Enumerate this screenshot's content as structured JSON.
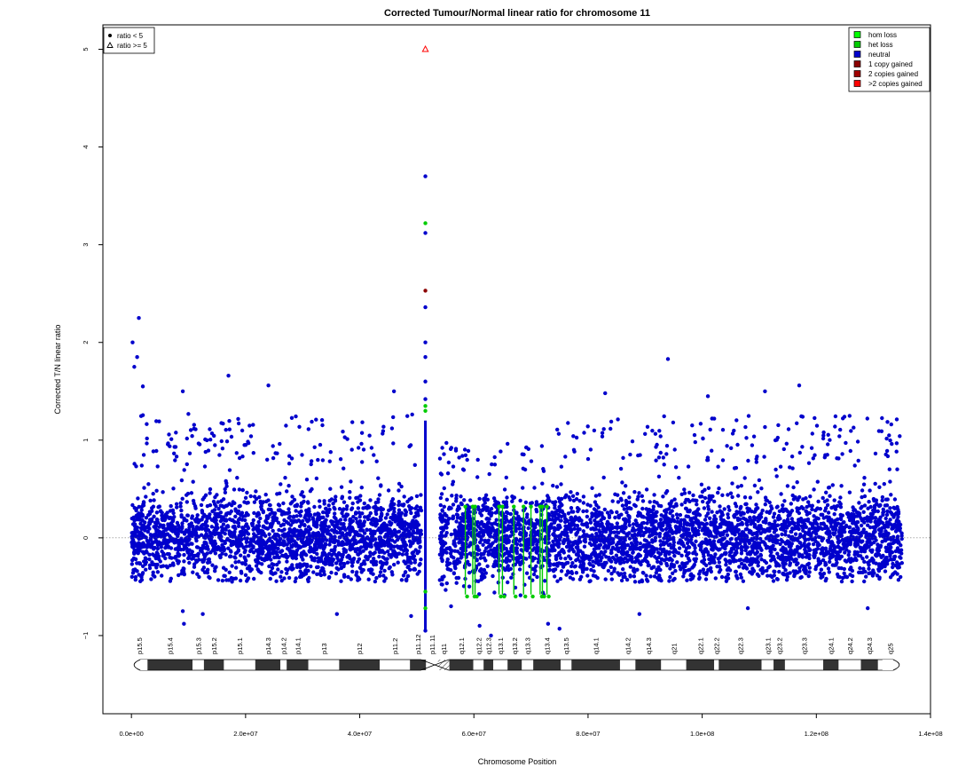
{
  "chart_data": {
    "type": "scatter",
    "title": "Corrected Tumour/Normal linear ratio for chromosome  11",
    "xlabel": "Chromosome Position",
    "ylabel": "Corrected T/N linear ratio",
    "xlim": [
      -5000000,
      140000000
    ],
    "ylim": [
      -1.8,
      5.25
    ],
    "x_ticks": [
      0,
      20000000,
      40000000,
      60000000,
      80000000,
      100000000,
      120000000,
      140000000
    ],
    "x_tick_labels": [
      "0.0e+00",
      "2.0e+07",
      "4.0e+07",
      "6.0e+07",
      "8.0e+07",
      "1.0e+08",
      "1.2e+08",
      "1.4e+08"
    ],
    "y_ticks": [
      -1,
      0,
      1,
      2,
      3,
      4,
      5
    ],
    "y_tick_labels": [
      "−1",
      "0",
      "1",
      "2",
      "3",
      "4",
      "5"
    ],
    "reference_line_y": 0,
    "colors": {
      "hom_loss": "#00ff00",
      "het_loss": "#00cc00",
      "neutral": "#0000cc",
      "one_copy_gained": "#8b0000",
      "two_copies_gained": "#a00000",
      "more_copies_gained": "#ff0000"
    },
    "legend_shape": {
      "position": "top-left",
      "entries": [
        {
          "label": "ratio < 5",
          "symbol": "dot"
        },
        {
          "label": "ratio >= 5",
          "symbol": "triangle"
        }
      ]
    },
    "legend_status": {
      "position": "top-right",
      "entries": [
        {
          "label": "hom loss",
          "color": "#00ff00"
        },
        {
          "label": "het loss",
          "color": "#00cc00"
        },
        {
          "label": "neutral",
          "color": "#0000cc"
        },
        {
          "label": "1 copy gained",
          "color": "#8b0000"
        },
        {
          "label": "2 copies gained",
          "color": "#a00000"
        },
        {
          "label": ">2 copies gained",
          "color": "#ff0000"
        }
      ]
    },
    "dense_regions": [
      {
        "status": "neutral",
        "x_range": [
          0,
          50800000
        ],
        "y_range": [
          -0.45,
          0.72
        ]
      },
      {
        "status": "neutral",
        "x_range": [
          54000000,
          73500000
        ],
        "y_range": [
          -0.6,
          0.45
        ]
      },
      {
        "status": "neutral",
        "x_range": [
          73500000,
          135000000
        ],
        "y_range": [
          -0.45,
          0.7
        ]
      }
    ],
    "het_loss_segments_x": [
      58500000,
      59800000,
      60200000,
      64400000,
      65000000,
      67000000,
      68700000,
      70000000,
      71600000,
      72000000,
      72800000
    ],
    "highlighted_points": [
      {
        "x": 51500000,
        "y": 5.0,
        "status": "more_copies_gained",
        "symbol": "triangle"
      },
      {
        "x": 51500000,
        "y": 3.7,
        "status": "neutral"
      },
      {
        "x": 51500000,
        "y": 3.22,
        "status": "het_loss"
      },
      {
        "x": 51500000,
        "y": 3.12,
        "status": "neutral"
      },
      {
        "x": 51500000,
        "y": 2.53,
        "status": "one_copy_gained"
      },
      {
        "x": 51500000,
        "y": 2.36,
        "status": "neutral"
      },
      {
        "x": 51500000,
        "y": 2.0,
        "status": "neutral"
      },
      {
        "x": 51500000,
        "y": 1.85,
        "status": "neutral"
      },
      {
        "x": 51500000,
        "y": 1.6,
        "status": "neutral"
      },
      {
        "x": 51500000,
        "y": 1.42,
        "status": "neutral"
      },
      {
        "x": 51500000,
        "y": 1.35,
        "status": "het_loss"
      },
      {
        "x": 51500000,
        "y": 1.3,
        "status": "het_loss"
      },
      {
        "x": 51500000,
        "y": -0.55,
        "status": "het_loss"
      },
      {
        "x": 51500000,
        "y": -0.72,
        "status": "het_loss"
      },
      {
        "x": 51500000,
        "y": -0.95,
        "status": "neutral"
      },
      {
        "x": 1300000,
        "y": 2.25,
        "status": "neutral"
      },
      {
        "x": 200000,
        "y": 2.0,
        "status": "neutral"
      },
      {
        "x": 1000000,
        "y": 1.85,
        "status": "neutral"
      },
      {
        "x": 500000,
        "y": 1.75,
        "status": "neutral"
      },
      {
        "x": 2000000,
        "y": 1.55,
        "status": "neutral"
      },
      {
        "x": 17000000,
        "y": 1.66,
        "status": "neutral"
      },
      {
        "x": 24000000,
        "y": 1.56,
        "status": "neutral"
      },
      {
        "x": 46000000,
        "y": 1.5,
        "status": "neutral"
      },
      {
        "x": 9000000,
        "y": 1.5,
        "status": "neutral"
      },
      {
        "x": 94000000,
        "y": 1.83,
        "status": "neutral"
      },
      {
        "x": 83000000,
        "y": 1.48,
        "status": "neutral"
      },
      {
        "x": 101000000,
        "y": 1.45,
        "status": "neutral"
      },
      {
        "x": 111000000,
        "y": 1.5,
        "status": "neutral"
      },
      {
        "x": 117000000,
        "y": 1.56,
        "status": "neutral"
      },
      {
        "x": 9000000,
        "y": -0.75,
        "status": "neutral"
      },
      {
        "x": 9200000,
        "y": -0.88,
        "status": "neutral"
      },
      {
        "x": 12500000,
        "y": -0.78,
        "status": "neutral"
      },
      {
        "x": 36000000,
        "y": -0.78,
        "status": "neutral"
      },
      {
        "x": 49000000,
        "y": -0.8,
        "status": "neutral"
      },
      {
        "x": 56000000,
        "y": -0.7,
        "status": "neutral"
      },
      {
        "x": 61000000,
        "y": -0.9,
        "status": "neutral"
      },
      {
        "x": 63000000,
        "y": -1.0,
        "status": "neutral"
      },
      {
        "x": 73000000,
        "y": -0.88,
        "status": "neutral"
      },
      {
        "x": 75000000,
        "y": -0.93,
        "status": "neutral"
      },
      {
        "x": 89000000,
        "y": -0.78,
        "status": "neutral"
      },
      {
        "x": 108000000,
        "y": -0.72,
        "status": "neutral"
      },
      {
        "x": 129000000,
        "y": -0.72,
        "status": "neutral"
      }
    ],
    "ideogram": {
      "y": -1.3,
      "centromere": [
        51300000,
        55000000
      ],
      "bands": [
        {
          "name": "p15.5",
          "start": 0,
          "end": 2800000,
          "stain": "gneg"
        },
        {
          "name": "p15.4",
          "start": 2800000,
          "end": 10700000,
          "stain": "gpos"
        },
        {
          "name": "p15.3",
          "start": 10700000,
          "end": 12700000,
          "stain": "gneg"
        },
        {
          "name": "p15.2",
          "start": 12700000,
          "end": 16200000,
          "stain": "gpos"
        },
        {
          "name": "p15.1",
          "start": 16200000,
          "end": 21700000,
          "stain": "gneg"
        },
        {
          "name": "p14.3",
          "start": 21700000,
          "end": 26100000,
          "stain": "gpos"
        },
        {
          "name": "p14.2",
          "start": 26100000,
          "end": 27200000,
          "stain": "gneg"
        },
        {
          "name": "p14.1",
          "start": 27200000,
          "end": 31000000,
          "stain": "gpos"
        },
        {
          "name": "p13",
          "start": 31000000,
          "end": 36400000,
          "stain": "gneg"
        },
        {
          "name": "p12",
          "start": 36400000,
          "end": 43500000,
          "stain": "gpos"
        },
        {
          "name": "p11.2",
          "start": 43500000,
          "end": 48800000,
          "stain": "gneg"
        },
        {
          "name": "p11.12",
          "start": 48800000,
          "end": 51600000,
          "stain": "gpos"
        },
        {
          "name": "p11.11",
          "start": 51600000,
          "end": 53700000,
          "stain": "acen"
        },
        {
          "name": "q11",
          "start": 53700000,
          "end": 55700000,
          "stain": "gvar"
        },
        {
          "name": "q12.1",
          "start": 55700000,
          "end": 59900000,
          "stain": "gpos"
        },
        {
          "name": "q12.2",
          "start": 59900000,
          "end": 61700000,
          "stain": "gneg"
        },
        {
          "name": "q12.3",
          "start": 61700000,
          "end": 63400000,
          "stain": "gpos"
        },
        {
          "name": "q13.1",
          "start": 63400000,
          "end": 65900000,
          "stain": "gneg"
        },
        {
          "name": "q13.2",
          "start": 65900000,
          "end": 68400000,
          "stain": "gpos"
        },
        {
          "name": "q13.3",
          "start": 68400000,
          "end": 70400000,
          "stain": "gneg"
        },
        {
          "name": "q13.4",
          "start": 70400000,
          "end": 75200000,
          "stain": "gpos"
        },
        {
          "name": "q13.5",
          "start": 75200000,
          "end": 77100000,
          "stain": "gneg"
        },
        {
          "name": "q14.1",
          "start": 77100000,
          "end": 85600000,
          "stain": "gpos"
        },
        {
          "name": "q14.2",
          "start": 85600000,
          "end": 88300000,
          "stain": "gneg"
        },
        {
          "name": "q14.3",
          "start": 88300000,
          "end": 92800000,
          "stain": "gpos"
        },
        {
          "name": "q21",
          "start": 92800000,
          "end": 97200000,
          "stain": "gneg"
        },
        {
          "name": "q22.1",
          "start": 97200000,
          "end": 102100000,
          "stain": "gpos"
        },
        {
          "name": "q22.2",
          "start": 102100000,
          "end": 102900000,
          "stain": "gneg"
        },
        {
          "name": "q22.3",
          "start": 102900000,
          "end": 110400000,
          "stain": "gpos"
        },
        {
          "name": "q23.1",
          "start": 110400000,
          "end": 112500000,
          "stain": "gneg"
        },
        {
          "name": "q23.2",
          "start": 112500000,
          "end": 114500000,
          "stain": "gpos"
        },
        {
          "name": "q23.3",
          "start": 114500000,
          "end": 121200000,
          "stain": "gneg"
        },
        {
          "name": "q24.1",
          "start": 121200000,
          "end": 123900000,
          "stain": "gpos"
        },
        {
          "name": "q24.2",
          "start": 123900000,
          "end": 127800000,
          "stain": "gneg"
        },
        {
          "name": "q24.3",
          "start": 127800000,
          "end": 130800000,
          "stain": "gpos"
        },
        {
          "name": "q25",
          "start": 130800000,
          "end": 135000000,
          "stain": "gneg"
        }
      ]
    }
  }
}
